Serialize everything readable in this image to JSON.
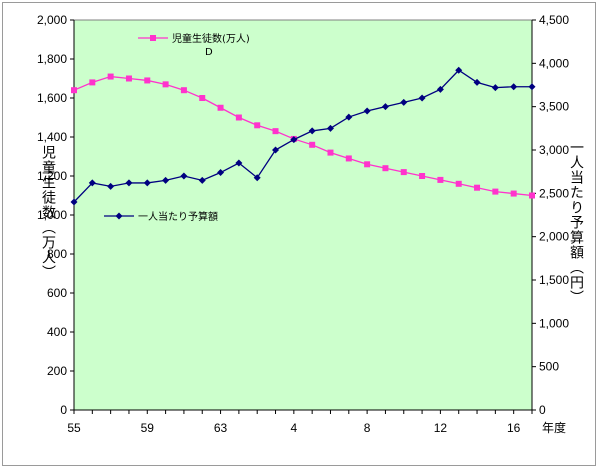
{
  "chart_data": {
    "type": "line",
    "x_tick_labels": [
      "55",
      "59",
      "63",
      "4",
      "8",
      "12",
      "16"
    ],
    "x_axis_suffix": "年度",
    "left_axis": {
      "label": "児童生徒数（万人）",
      "ylim": [
        0,
        2000
      ],
      "ticks": [
        "0",
        "200",
        "400",
        "600",
        "800",
        "1,000",
        "1,200",
        "1,400",
        "1,600",
        "1,800",
        "2,000"
      ]
    },
    "right_axis": {
      "label": "一人当たり予算額（円）",
      "ylim": [
        0,
        4500
      ],
      "ticks": [
        "0",
        "500",
        "1,000",
        "1,500",
        "2,000",
        "2,500",
        "3,000",
        "3,500",
        "4,000",
        "4,500"
      ]
    },
    "annotation": "D",
    "plot_bg": "#ccffcc",
    "series": [
      {
        "name": "児童生徒数(万人)",
        "axis": "left",
        "color": "#ff33cc",
        "marker": "square",
        "values": [
          1640,
          1680,
          1710,
          1700,
          1690,
          1670,
          1640,
          1600,
          1550,
          1500,
          1460,
          1430,
          1390,
          1360,
          1320,
          1290,
          1260,
          1240,
          1220,
          1200,
          1180,
          1160,
          1140,
          1120,
          1110,
          1100
        ]
      },
      {
        "name": "一人当たり予算額",
        "axis": "right",
        "color": "#000080",
        "marker": "diamond",
        "values": [
          2400,
          2620,
          2580,
          2620,
          2620,
          2650,
          2700,
          2650,
          2740,
          2850,
          2680,
          3000,
          3120,
          3220,
          3250,
          3380,
          3450,
          3500,
          3550,
          3600,
          3700,
          3920,
          3780,
          3720,
          3730,
          3730
        ]
      }
    ],
    "legend": "inside-plot"
  }
}
